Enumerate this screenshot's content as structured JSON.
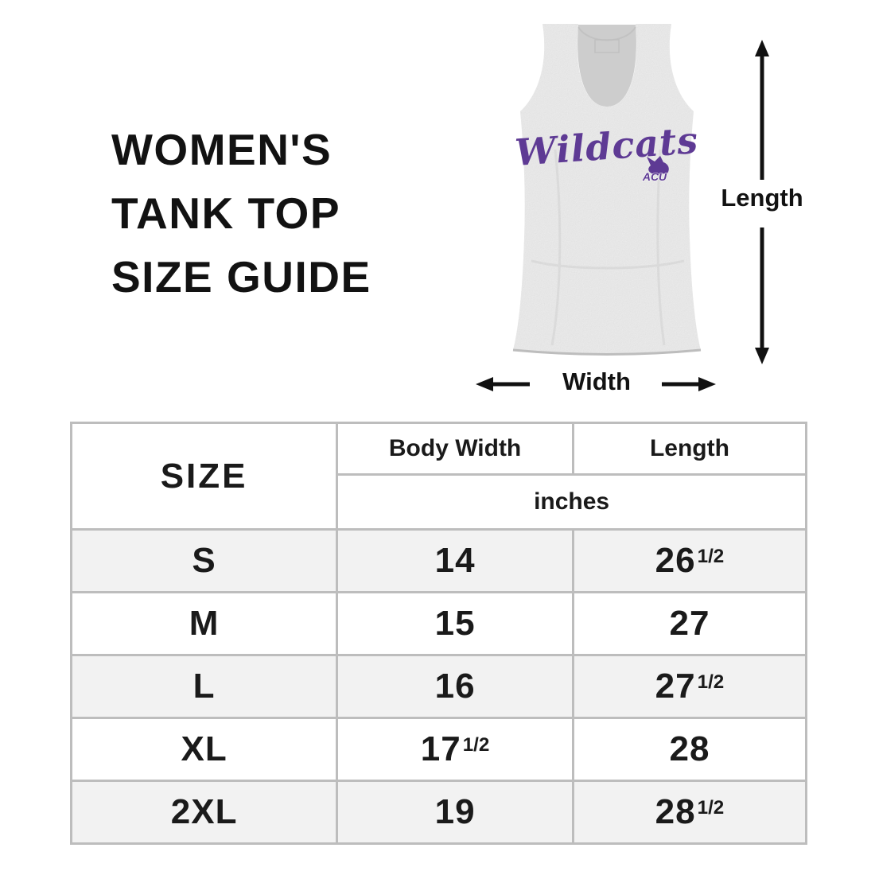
{
  "title": {
    "lines": [
      "WOMEN'S",
      "TANK TOP",
      "SIZE GUIDE"
    ]
  },
  "garment": {
    "type": "womens-racerback-tank-top",
    "print_text": "Wildcats",
    "logo_text": "ACU",
    "fabric_color": "#dadada",
    "fabric_back_color": "#cdcdcd",
    "print_color": "#5e3a94"
  },
  "annotations": {
    "length_label": "Length",
    "width_label": "Width"
  },
  "size_table": {
    "header": {
      "size": "SIZE",
      "body_width": "Body Width",
      "length": "Length",
      "unit": "inches"
    },
    "rows": [
      {
        "size": "S",
        "body_width_whole": "14",
        "body_width_frac": "",
        "length_whole": "26",
        "length_frac": "1/2"
      },
      {
        "size": "M",
        "body_width_whole": "15",
        "body_width_frac": "",
        "length_whole": "27",
        "length_frac": ""
      },
      {
        "size": "L",
        "body_width_whole": "16",
        "body_width_frac": "",
        "length_whole": "27",
        "length_frac": "1/2"
      },
      {
        "size": "XL",
        "body_width_whole": "17",
        "body_width_frac": "1/2",
        "length_whole": "28",
        "length_frac": ""
      },
      {
        "size": "2XL",
        "body_width_whole": "19",
        "body_width_frac": "",
        "length_whole": "28",
        "length_frac": "1/2"
      }
    ]
  },
  "colors": {
    "table_border": "#bdbdbd",
    "row_alt_bg": "#f2f2f2",
    "text": "#141414",
    "arrow": "#111111"
  }
}
